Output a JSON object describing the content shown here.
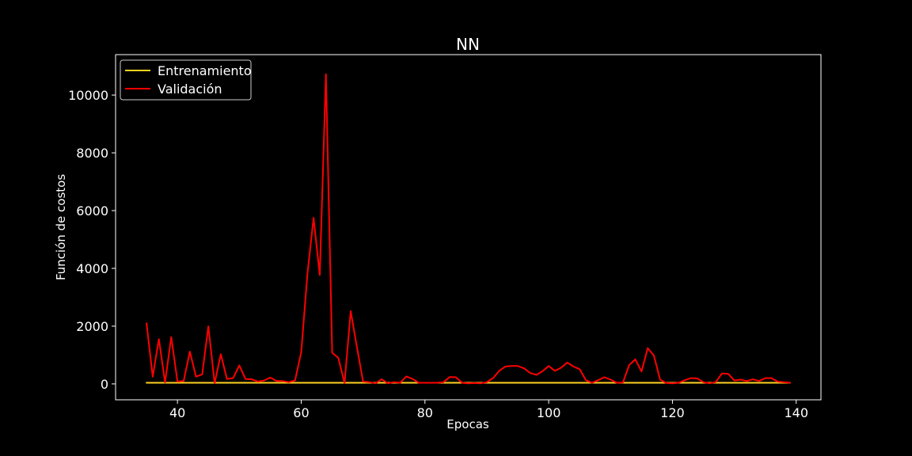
{
  "chart_data": {
    "type": "line",
    "title": "NN",
    "xlabel": "Epocas",
    "ylabel": "Función de costos",
    "xlim": [
      30,
      144
    ],
    "ylim": [
      -550,
      11400
    ],
    "xticks": [
      40,
      60,
      80,
      100,
      120,
      140
    ],
    "yticks": [
      0,
      2000,
      4000,
      6000,
      8000,
      10000
    ],
    "grid": false,
    "legend_position": "top-left",
    "background": "#000000",
    "series": [
      {
        "name": "Entrenamiento",
        "color": "#ffd21f",
        "x": [
          35,
          139
        ],
        "y": [
          40,
          40
        ]
      },
      {
        "name": "Validación",
        "color": "#ff0000",
        "x": [
          35,
          36,
          37,
          38,
          39,
          40,
          41,
          42,
          43,
          44,
          45,
          46,
          47,
          48,
          49,
          50,
          51,
          52,
          53,
          54,
          55,
          56,
          57,
          58,
          59,
          60,
          61,
          62,
          63,
          64,
          65,
          66,
          67,
          68,
          69,
          70,
          71,
          72,
          73,
          74,
          75,
          76,
          77,
          78,
          79,
          80,
          81,
          82,
          83,
          84,
          85,
          86,
          87,
          88,
          89,
          90,
          91,
          92,
          93,
          94,
          95,
          96,
          97,
          98,
          99,
          100,
          101,
          102,
          103,
          104,
          105,
          106,
          107,
          108,
          109,
          110,
          111,
          112,
          113,
          114,
          115,
          116,
          117,
          118,
          119,
          120,
          121,
          122,
          123,
          124,
          125,
          126,
          127,
          128,
          129,
          130,
          131,
          132,
          133,
          134,
          135,
          136,
          137,
          138,
          139
        ],
        "y": [
          2100,
          250,
          1550,
          50,
          1620,
          80,
          100,
          1120,
          250,
          330,
          1990,
          20,
          1030,
          170,
          200,
          640,
          170,
          160,
          80,
          120,
          220,
          100,
          100,
          60,
          120,
          1100,
          3800,
          5750,
          3770,
          10720,
          1080,
          900,
          20,
          2520,
          1280,
          80,
          60,
          20,
          160,
          20,
          60,
          40,
          260,
          170,
          40,
          40,
          40,
          40,
          60,
          240,
          230,
          40,
          20,
          30,
          20,
          60,
          200,
          450,
          600,
          620,
          620,
          540,
          380,
          310,
          440,
          620,
          450,
          560,
          740,
          600,
          510,
          130,
          40,
          130,
          230,
          150,
          40,
          50,
          650,
          850,
          430,
          1240,
          980,
          150,
          30,
          20,
          40,
          130,
          200,
          190,
          60,
          20,
          60,
          360,
          350,
          120,
          150,
          100,
          160,
          100,
          200,
          200,
          80,
          60,
          40
        ]
      }
    ]
  }
}
